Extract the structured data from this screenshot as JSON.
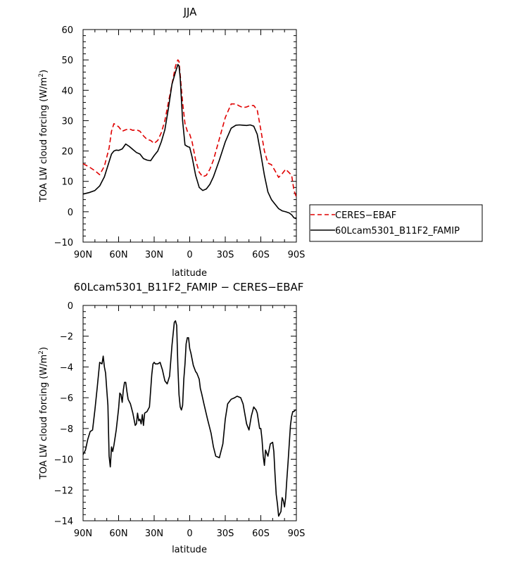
{
  "chart_data": [
    {
      "type": "line",
      "title": "JJA",
      "xlabel": "latitude",
      "ylabel": "TOA LW cloud forcing (W/m²)",
      "x_ticks": [
        "90N",
        "60N",
        "30N",
        "0",
        "30S",
        "60S",
        "90S"
      ],
      "x_tick_values": [
        90,
        60,
        30,
        0,
        -30,
        -60,
        -90
      ],
      "y_ticks": [
        "60",
        "50",
        "40",
        "30",
        "20",
        "10",
        "0",
        "−10"
      ],
      "y_tick_values": [
        60,
        50,
        40,
        30,
        20,
        10,
        0,
        -10
      ],
      "xlim": [
        90,
        -90
      ],
      "ylim": [
        -10,
        60
      ],
      "legend_position": "right",
      "series": [
        {
          "name": "CERES−EBAF",
          "color": "#e00000",
          "dash": "dashed",
          "x": [
            90,
            85,
            80,
            76,
            72,
            68,
            66,
            64,
            62,
            60,
            57,
            54,
            51,
            48,
            45,
            42,
            39,
            36,
            33,
            30,
            27,
            24,
            21,
            18,
            15,
            12,
            10,
            9,
            8,
            6,
            4,
            2,
            0,
            -2,
            -5,
            -8,
            -11,
            -14,
            -17,
            -20,
            -25,
            -30,
            -35,
            -39,
            -42,
            -45,
            -48,
            -51,
            -54,
            -57,
            -60,
            -63,
            -66,
            -69,
            -72,
            -75,
            -78,
            -81,
            -84,
            -86,
            -88,
            -90
          ],
          "y": [
            15.8,
            14.8,
            13.5,
            12.2,
            15,
            21,
            26.5,
            29,
            28.5,
            28,
            26.5,
            27,
            27.3,
            26.8,
            27,
            26.5,
            25,
            23.8,
            23.5,
            22.5,
            23.5,
            26,
            30,
            36,
            42,
            48,
            50,
            49.5,
            45,
            36,
            29,
            26.5,
            25.5,
            23,
            17,
            13,
            11.5,
            12,
            14,
            17,
            24,
            31,
            35.5,
            35.5,
            34.8,
            34.3,
            34.5,
            35,
            35,
            33.5,
            27,
            20,
            16,
            15.5,
            13.5,
            11.3,
            12.5,
            14,
            12.8,
            12,
            7,
            4.8
          ]
        },
        {
          "name": "60Lcam5301_B11F2_FAMIP",
          "color": "#000000",
          "dash": "solid",
          "x": [
            90,
            85,
            80,
            76,
            72,
            68,
            66,
            64,
            62,
            60,
            57,
            54,
            51,
            48,
            45,
            42,
            39,
            36,
            33,
            30,
            27,
            24,
            21,
            18,
            15,
            12,
            10,
            9,
            8,
            6,
            4,
            2,
            0,
            -2,
            -5,
            -8,
            -11,
            -14,
            -17,
            -20,
            -25,
            -30,
            -35,
            -39,
            -42,
            -45,
            -48,
            -51,
            -54,
            -57,
            -60,
            -63,
            -66,
            -69,
            -72,
            -75,
            -78,
            -81,
            -84,
            -86,
            -88,
            -90
          ],
          "y": [
            5.8,
            6.3,
            7,
            8.5,
            11.5,
            16.5,
            19,
            20,
            20.3,
            20.2,
            20.7,
            22.3,
            21.5,
            20.5,
            19.5,
            19,
            17.5,
            17,
            16.8,
            18.5,
            20,
            23,
            27,
            34,
            42,
            46,
            48.5,
            48,
            44,
            30,
            22,
            21.5,
            21.2,
            18,
            12,
            8,
            7,
            7.5,
            9,
            11.5,
            17,
            23,
            27.5,
            28.5,
            28.6,
            28.5,
            28.4,
            28.6,
            28.2,
            25.5,
            19,
            12,
            6.5,
            4,
            2.5,
            1,
            0.3,
            0,
            -0.4,
            -1,
            -2,
            -2.3
          ]
        }
      ]
    },
    {
      "type": "line",
      "title": "60Lcam5301_B11F2_FAMIP  −  CERES−EBAF",
      "xlabel": "latitude",
      "ylabel": "TOA LW cloud forcing (W/m²)",
      "x_ticks": [
        "90N",
        "60N",
        "30N",
        "0",
        "30S",
        "60S",
        "90S"
      ],
      "x_tick_values": [
        90,
        60,
        30,
        0,
        -30,
        -60,
        -90
      ],
      "y_ticks": [
        "0",
        "−2",
        "−4",
        "−6",
        "−8",
        "−10",
        "−12",
        "−14"
      ],
      "y_tick_values": [
        0,
        -2,
        -4,
        -6,
        -8,
        -10,
        -12,
        -14
      ],
      "xlim": [
        90,
        -90
      ],
      "ylim": [
        -14,
        0
      ],
      "series": [
        {
          "color": "#000000",
          "dash": "solid",
          "x": [
            90,
            88,
            86,
            84,
            82,
            80,
            78,
            76,
            74,
            73,
            72,
            71,
            70,
            69,
            68,
            67,
            66,
            65,
            64,
            62,
            60,
            59,
            58,
            57,
            56,
            55,
            54,
            53,
            52,
            50,
            48,
            46,
            45,
            44,
            43,
            42,
            41,
            40,
            39,
            38,
            36,
            34,
            32,
            31,
            30,
            29,
            28,
            27,
            25,
            23,
            21,
            19,
            17,
            15,
            13,
            12,
            11,
            10,
            9,
            8,
            7,
            6,
            5,
            4,
            3,
            2,
            1,
            0,
            -1,
            -3,
            -5,
            -6,
            -7,
            -8,
            -9,
            -10,
            -12,
            -15,
            -18,
            -20,
            -22,
            -25,
            -28,
            -30,
            -32,
            -35,
            -38,
            -40,
            -43,
            -45,
            -48,
            -50,
            -52,
            -54,
            -56,
            -57,
            -58,
            -59,
            -60,
            -61,
            -62,
            -63,
            -64,
            -66,
            -68,
            -70,
            -71,
            -72,
            -73,
            -74,
            -75,
            -77,
            -78,
            -79,
            -80,
            -81,
            -82,
            -83,
            -84,
            -85,
            -86,
            -87,
            -88,
            -89,
            -90
          ],
          "y": [
            -9.7,
            -9.4,
            -8.7,
            -8.2,
            -8.1,
            -6.8,
            -5.3,
            -3.7,
            -3.8,
            -3.3,
            -4,
            -4.4,
            -5.5,
            -6.5,
            -9.8,
            -10.5,
            -9.2,
            -9.5,
            -9.1,
            -8.1,
            -6.7,
            -5.7,
            -5.8,
            -6.3,
            -5.5,
            -5,
            -5,
            -5.6,
            -6.1,
            -6.4,
            -7,
            -7.8,
            -7.7,
            -7,
            -7.5,
            -7.4,
            -7.7,
            -7.1,
            -7.8,
            -7,
            -6.9,
            -6.6,
            -4.5,
            -3.8,
            -3.7,
            -3.8,
            -3.8,
            -3.8,
            -3.7,
            -4.2,
            -4.9,
            -5.1,
            -4.6,
            -2.6,
            -1.1,
            -1,
            -1.3,
            -4,
            -5.8,
            -6.6,
            -6.8,
            -6.5,
            -4.8,
            -3.8,
            -2.5,
            -2.1,
            -2.1,
            -2.8,
            -3.1,
            -3.9,
            -4.3,
            -4.4,
            -4.6,
            -4.8,
            -5.4,
            -5.7,
            -6.4,
            -7.4,
            -8.3,
            -9.2,
            -9.8,
            -9.9,
            -9,
            -7.4,
            -6.4,
            -6.1,
            -6,
            -5.9,
            -6,
            -6.4,
            -7.7,
            -8.1,
            -7.2,
            -6.6,
            -6.8,
            -7,
            -7.5,
            -8,
            -8,
            -8.7,
            -9.8,
            -10.4,
            -9.4,
            -9.8,
            -9,
            -8.9,
            -9.5,
            -11,
            -12.3,
            -12.9,
            -13.7,
            -13.4,
            -12.5,
            -12.7,
            -13.1,
            -12.5,
            -11.3,
            -10.2,
            -9,
            -7.8,
            -7.2,
            -6.9,
            -6.9,
            -6.8,
            -6.8
          ]
        }
      ]
    }
  ]
}
